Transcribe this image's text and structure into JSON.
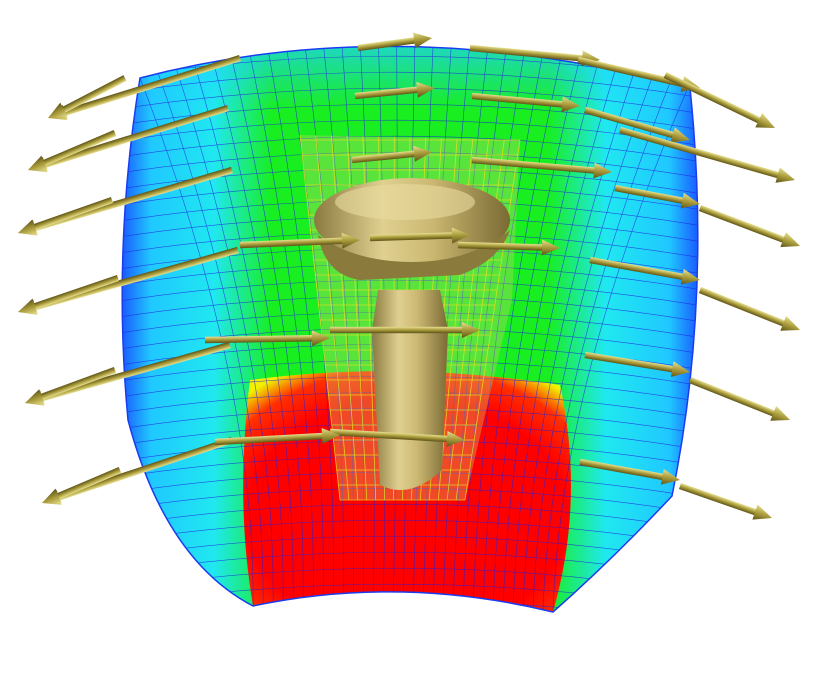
{
  "scene": {
    "background": "#ffffff",
    "colors": {
      "low": "#1560ff",
      "low_mid": "#20d8ff",
      "mid": "#10ee10",
      "high_mid": "#f0f000",
      "high": "#ff0000",
      "mesh": "#2020e0",
      "inner_mesh": "#e8e020",
      "implant": "#c8b468",
      "arrow": "#a09a30"
    },
    "icons": [
      "arrow-icon"
    ]
  }
}
